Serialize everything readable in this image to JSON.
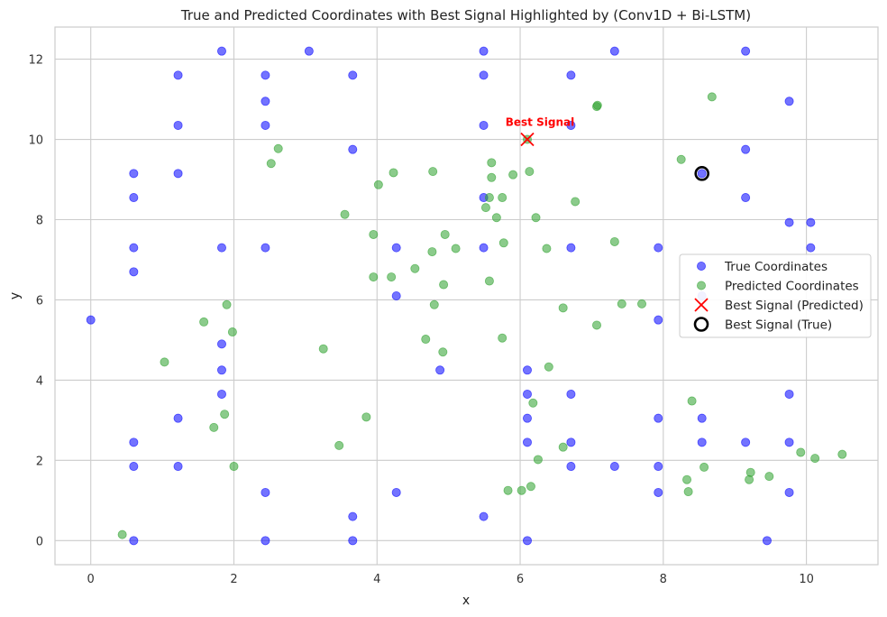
{
  "chart_data": {
    "type": "scatter",
    "title": "True and Predicted Coordinates with Best Signal Highlighted by (Conv1D + Bi-LSTM)",
    "xlabel": "x",
    "ylabel": "y",
    "xlim": [
      -0.5,
      11.0
    ],
    "ylim": [
      -0.6,
      12.8
    ],
    "xticks": [
      0,
      2,
      4,
      6,
      8,
      10
    ],
    "yticks": [
      0,
      2,
      4,
      6,
      8,
      10,
      12
    ],
    "grid": true,
    "legend_position": "center-right",
    "series": [
      {
        "name": "True Coordinates",
        "color": "#0000ff",
        "marker": "circle",
        "points": [
          [
            0.0,
            5.5
          ],
          [
            0.6,
            9.15
          ],
          [
            0.6,
            8.55
          ],
          [
            0.6,
            7.3
          ],
          [
            0.6,
            6.7
          ],
          [
            0.6,
            2.45
          ],
          [
            0.6,
            1.85
          ],
          [
            0.6,
            0.0
          ],
          [
            1.22,
            11.6
          ],
          [
            1.22,
            10.35
          ],
          [
            1.22,
            9.15
          ],
          [
            1.22,
            3.05
          ],
          [
            1.22,
            1.85
          ],
          [
            1.83,
            12.2
          ],
          [
            1.83,
            7.3
          ],
          [
            1.83,
            4.9
          ],
          [
            1.83,
            4.25
          ],
          [
            1.83,
            3.65
          ],
          [
            2.44,
            11.6
          ],
          [
            2.44,
            10.95
          ],
          [
            2.44,
            10.35
          ],
          [
            2.44,
            7.3
          ],
          [
            2.44,
            1.2
          ],
          [
            2.44,
            0.0
          ],
          [
            3.05,
            12.2
          ],
          [
            3.66,
            11.6
          ],
          [
            3.66,
            9.75
          ],
          [
            3.66,
            0.6
          ],
          [
            3.66,
            0.0
          ],
          [
            4.27,
            7.3
          ],
          [
            4.27,
            6.1
          ],
          [
            4.27,
            1.2
          ],
          [
            4.88,
            4.25
          ],
          [
            5.49,
            12.2
          ],
          [
            5.49,
            11.6
          ],
          [
            5.49,
            10.35
          ],
          [
            5.49,
            8.55
          ],
          [
            5.49,
            7.3
          ],
          [
            5.49,
            0.6
          ],
          [
            6.1,
            4.25
          ],
          [
            6.1,
            3.65
          ],
          [
            6.1,
            3.05
          ],
          [
            6.1,
            2.45
          ],
          [
            6.1,
            0.0
          ],
          [
            6.71,
            11.6
          ],
          [
            6.71,
            10.35
          ],
          [
            6.71,
            7.3
          ],
          [
            6.71,
            3.65
          ],
          [
            6.71,
            2.45
          ],
          [
            6.71,
            1.85
          ],
          [
            7.32,
            12.2
          ],
          [
            7.32,
            1.85
          ],
          [
            7.93,
            7.3
          ],
          [
            7.93,
            5.5
          ],
          [
            7.93,
            3.05
          ],
          [
            7.93,
            1.85
          ],
          [
            7.93,
            1.2
          ],
          [
            8.54,
            9.15
          ],
          [
            8.54,
            6.1
          ],
          [
            8.54,
            3.05
          ],
          [
            8.54,
            2.45
          ],
          [
            9.15,
            12.2
          ],
          [
            9.15,
            9.75
          ],
          [
            9.15,
            8.55
          ],
          [
            9.15,
            2.45
          ],
          [
            9.45,
            0.0
          ],
          [
            9.76,
            10.95
          ],
          [
            9.76,
            7.93
          ],
          [
            9.76,
            3.65
          ],
          [
            9.76,
            2.45
          ],
          [
            9.76,
            1.2
          ],
          [
            10.06,
            7.93
          ],
          [
            10.06,
            7.3
          ]
        ]
      },
      {
        "name": "Predicted Coordinates",
        "color": "#2ca02c",
        "marker": "circle",
        "points": [
          [
            0.44,
            0.15
          ],
          [
            1.03,
            4.45
          ],
          [
            1.58,
            5.45
          ],
          [
            1.72,
            2.82
          ],
          [
            1.87,
            3.15
          ],
          [
            1.9,
            5.88
          ],
          [
            1.98,
            5.2
          ],
          [
            2.0,
            1.85
          ],
          [
            2.52,
            9.4
          ],
          [
            2.62,
            9.77
          ],
          [
            3.25,
            4.78
          ],
          [
            3.47,
            2.37
          ],
          [
            3.55,
            8.13
          ],
          [
            3.85,
            3.08
          ],
          [
            3.95,
            7.63
          ],
          [
            3.95,
            6.57
          ],
          [
            4.02,
            8.87
          ],
          [
            4.2,
            6.57
          ],
          [
            4.23,
            9.17
          ],
          [
            4.53,
            6.78
          ],
          [
            4.68,
            5.02
          ],
          [
            4.77,
            7.2
          ],
          [
            4.78,
            9.2
          ],
          [
            4.8,
            5.88
          ],
          [
            4.92,
            4.7
          ],
          [
            4.93,
            6.38
          ],
          [
            4.95,
            7.63
          ],
          [
            5.1,
            7.28
          ],
          [
            5.52,
            8.3
          ],
          [
            5.57,
            6.47
          ],
          [
            5.57,
            8.55
          ],
          [
            5.6,
            9.42
          ],
          [
            5.6,
            9.05
          ],
          [
            5.67,
            8.05
          ],
          [
            5.75,
            8.55
          ],
          [
            5.75,
            5.05
          ],
          [
            5.77,
            7.42
          ],
          [
            5.83,
            1.25
          ],
          [
            5.9,
            9.12
          ],
          [
            6.02,
            1.25
          ],
          [
            6.1,
            10.0
          ],
          [
            6.13,
            9.2
          ],
          [
            6.15,
            1.35
          ],
          [
            6.18,
            3.43
          ],
          [
            6.22,
            8.05
          ],
          [
            6.25,
            2.02
          ],
          [
            6.37,
            7.28
          ],
          [
            6.4,
            4.33
          ],
          [
            6.6,
            2.33
          ],
          [
            6.6,
            5.8
          ],
          [
            6.77,
            8.45
          ],
          [
            7.07,
            10.82
          ],
          [
            7.08,
            10.85
          ],
          [
            7.07,
            5.37
          ],
          [
            7.32,
            7.45
          ],
          [
            7.42,
            5.9
          ],
          [
            7.7,
            5.9
          ],
          [
            8.25,
            9.5
          ],
          [
            8.33,
            1.52
          ],
          [
            8.35,
            1.22
          ],
          [
            8.4,
            3.48
          ],
          [
            8.57,
            1.83
          ],
          [
            8.68,
            11.06
          ],
          [
            9.2,
            1.52
          ],
          [
            9.22,
            1.7
          ],
          [
            9.48,
            1.6
          ],
          [
            9.92,
            2.2
          ],
          [
            10.12,
            2.05
          ],
          [
            10.5,
            2.15
          ]
        ]
      },
      {
        "name": "Best Signal (Predicted)",
        "color": "#ff0000",
        "marker": "x",
        "points": [
          [
            6.1,
            10.0
          ]
        ]
      },
      {
        "name": "Best Signal (True)",
        "color": "#000000",
        "marker": "open-circle",
        "points": [
          [
            8.54,
            9.15
          ]
        ]
      }
    ],
    "annotations": [
      {
        "text": "Best Signal",
        "x": 6.1,
        "y": 10.0,
        "color": "#ff0000"
      }
    ]
  }
}
